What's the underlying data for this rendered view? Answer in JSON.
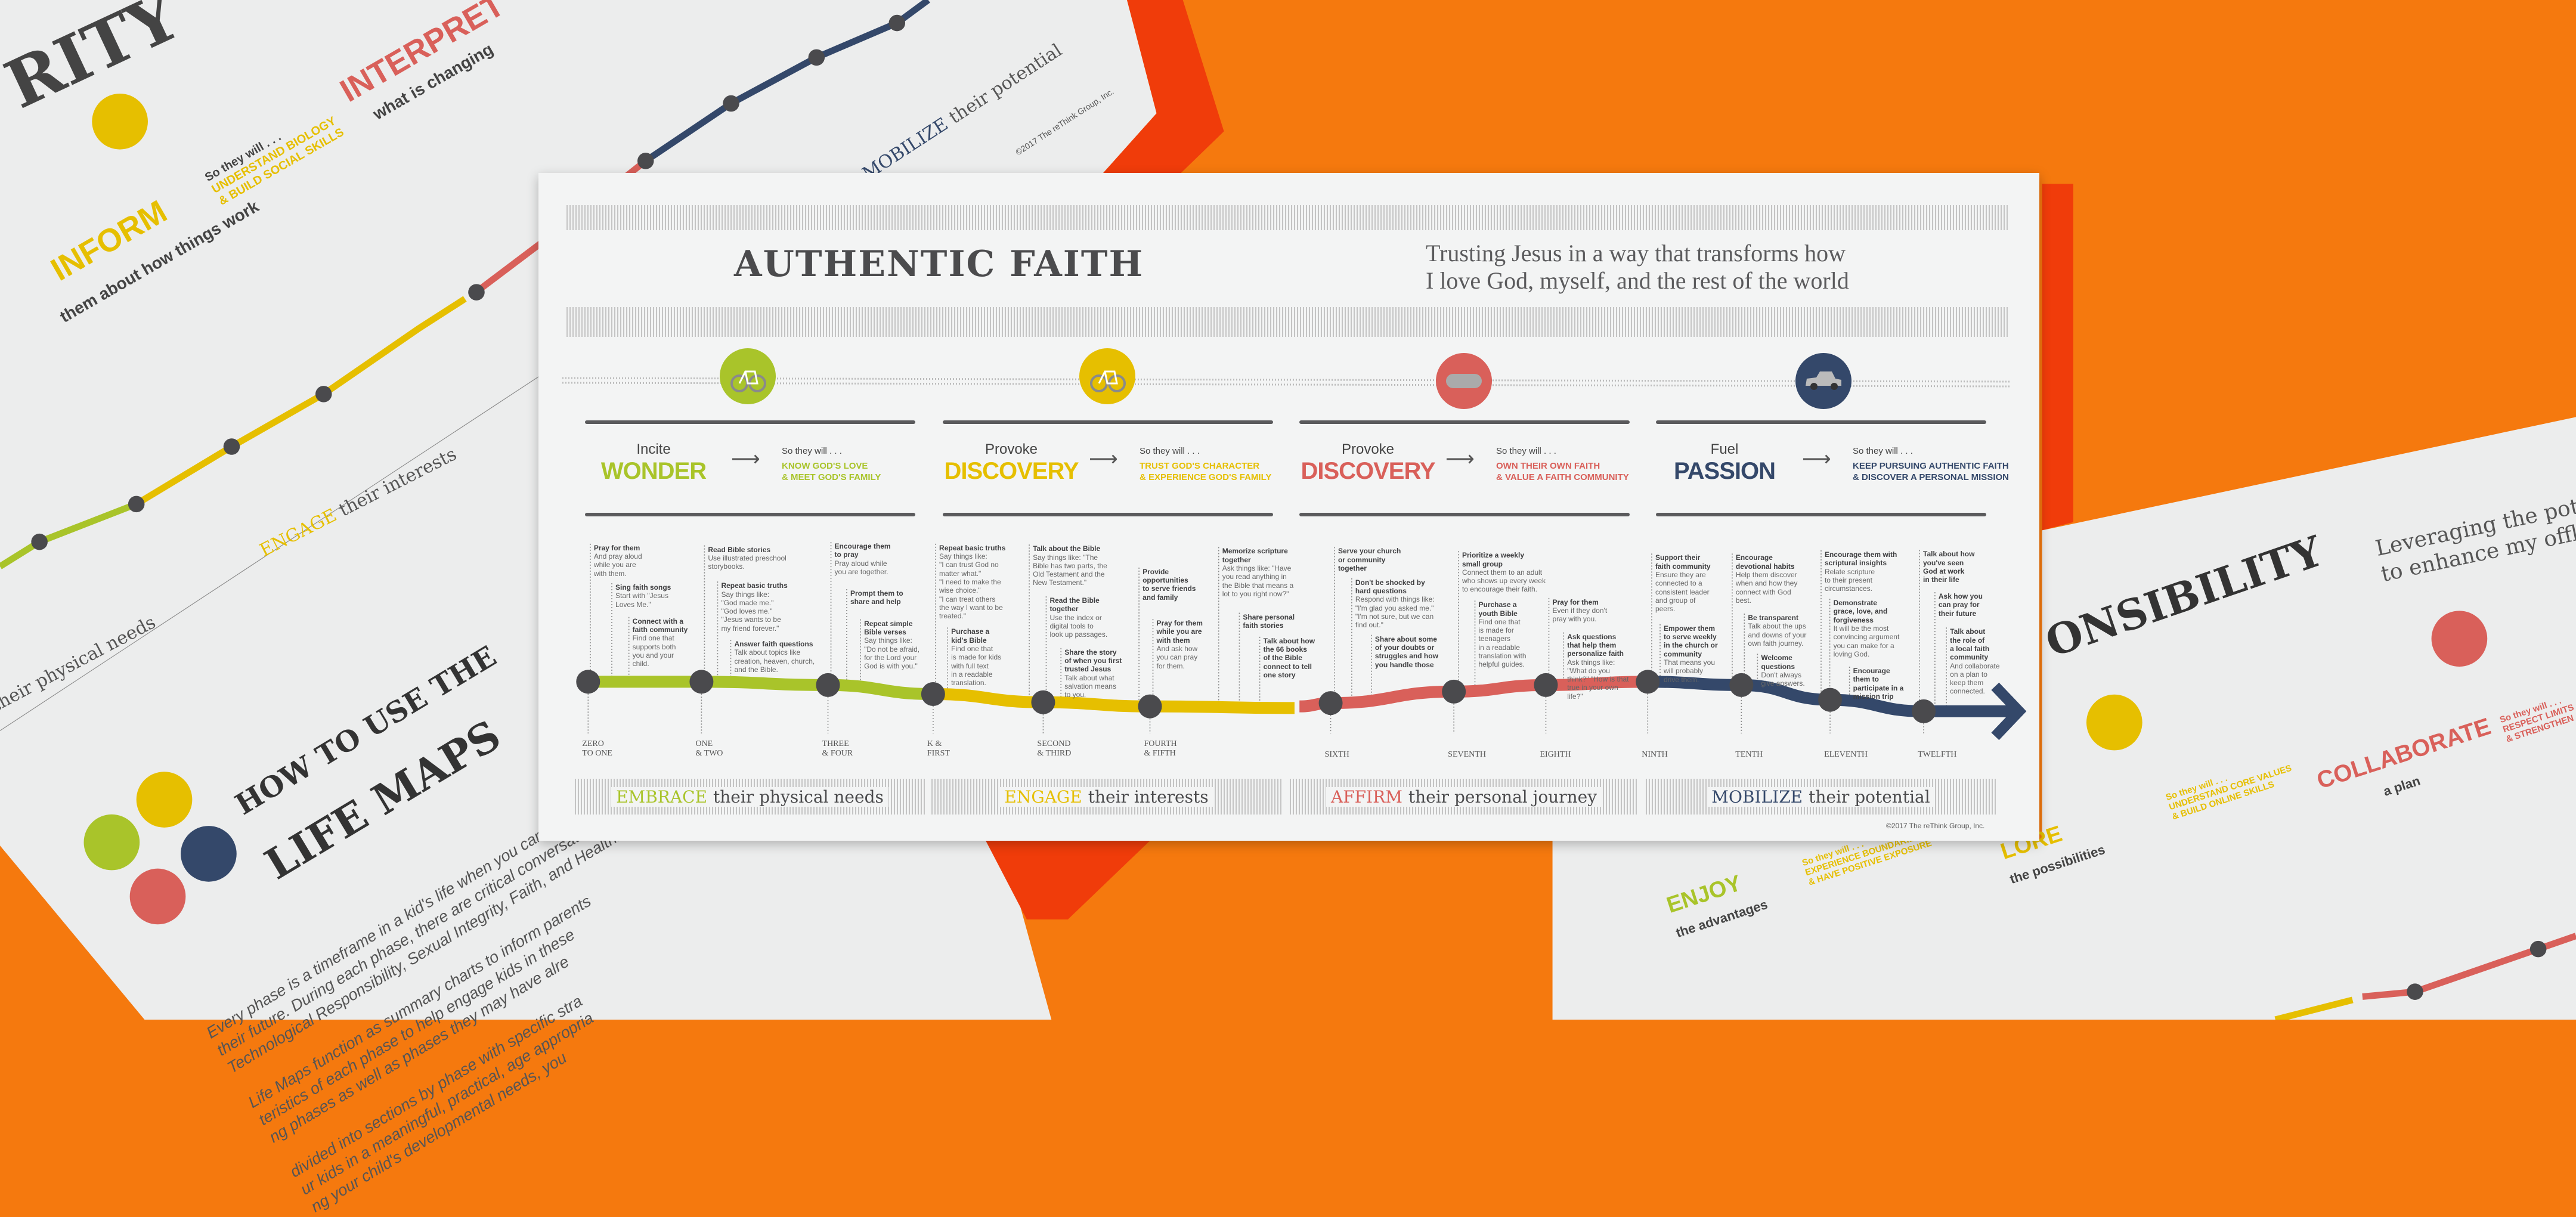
{
  "colors": {
    "background": "#f5790e",
    "accent_red_orange": "#f03c0a",
    "paper": "#f3f4f4",
    "green": "#a9c42a",
    "yellow": "#e6bf00",
    "red": "#d9605a",
    "navy": "#34486a",
    "node": "#4a4a4d"
  },
  "background_posters": {
    "top_left": {
      "title_fragment": "RITY",
      "inform": "INFORM",
      "inform_sub": "them about how things work",
      "interpret": "INTERPRET",
      "interpret_sub": "what is changing",
      "so_they_will": "So they will . . .",
      "goal": "UNDERSTAND BIOLOGY\n& BUILD SOCIAL SKILLS",
      "engage": "ENGAGE",
      "engage_rest": "their interests",
      "physical": "their physical needs",
      "mobilize": "MOBILIZE",
      "mobilize_rest": "their potential",
      "copyright": "©2017 The reThink Group, Inc."
    },
    "how_to": {
      "line1": "HOW TO USE THE",
      "line2": "LIFE MAPS",
      "paragraph": "Every phase is a timeframe in a kid's life when you can leverage disti\ntheir future. During each phase, there are critical conversations ea\nTechnological Responsibility, Sexual Integrity, Faith, and Health.\n\nLife Maps function as summary charts to inform parents\nteristics of each phase to help engage kids in these\nng phases as well as phases they may have alre\n\ndivided into sections by phase with specific stra\nur kids in a meaningful, practical, age appropria\nng your child's developmental needs, you"
    },
    "right": {
      "title_fragment": "ONSIBILITY",
      "subtitle": "Leveraging the poten\nto enhance my offlin",
      "enjoy": "ENJOY",
      "enjoy_sub": "the advantages",
      "enjoy_goal": "So they will . . .\nEXPERIENCE BOUNDARIES\n& HAVE POSITIVE EXPOSURE",
      "explore": "LORE",
      "explore_sub": "the possibilities",
      "explore_goal": "So they will . . .\nUNDERSTAND CORE VALUES\n& BUILD ONLINE SKILLS",
      "collaborate": "COLLABORATE",
      "collaborate_sub": "a plan",
      "collaborate_goal": "So they will . . .\nRESPECT LIMITS\n& STRENGTHEN"
    }
  },
  "poster": {
    "title": "AUTHENTIC FAITH",
    "subtitle": "Trusting Jesus in a way that transforms how\nI love God, myself, and the rest of the world",
    "phases": [
      {
        "verb": "Incite",
        "noun": "WONDER",
        "so_they_will": "So they will . . .",
        "goal": "KNOW GOD'S LOVE\n& MEET GOD'S FAMILY",
        "color": "#a9c42a",
        "icon": "bicycle-training-wheels-icon"
      },
      {
        "verb": "Provoke",
        "noun": "DISCOVERY",
        "so_they_will": "So they will . . .",
        "goal": "TRUST GOD'S CHARACTER\n& EXPERIENCE GOD'S FAMILY",
        "color": "#e6bf00",
        "icon": "bicycle-icon"
      },
      {
        "verb": "Provoke",
        "noun": "DISCOVERY",
        "so_they_will": "So they will . . .",
        "goal": "OWN THEIR OWN FAITH\n& VALUE A FAITH COMMUNITY",
        "color": "#d9605a",
        "icon": "skateboard-icon"
      },
      {
        "verb": "Fuel",
        "noun": "PASSION",
        "so_they_will": "So they will . . .",
        "goal": "KEEP PURSUING AUTHENTIC FAITH\n& DISCOVER A PERSONAL MISSION",
        "color": "#34486a",
        "icon": "car-icon"
      }
    ],
    "ages": [
      "ZERO\nTO ONE",
      "ONE\n& TWO",
      "THREE\n& FOUR",
      "K &\nFIRST",
      "SECOND\n& THIRD",
      "FOURTH\n& FIFTH",
      "SIXTH",
      "SEVENTH",
      "EIGHTH",
      "NINTH",
      "TENTH",
      "ELEVENTH",
      "TWELFTH"
    ],
    "items": [
      {
        "title": "Pray for them",
        "body": "And pray aloud\nwhile you are\nwith them."
      },
      {
        "title": "Sing faith songs",
        "body": "Start with \"Jesus\nLoves Me.\""
      },
      {
        "title": "Connect with a\nfaith community",
        "body": "Find one that\nsupports both\nyou and your\nchild."
      },
      {
        "title": "Read Bible stories",
        "body": "Use illustrated preschool\nstorybooks."
      },
      {
        "title": "Repeat basic truths",
        "body": "Say things like:\n\"God made me.\"\n\"God loves me.\"\n\"Jesus wants to be\nmy friend forever.\""
      },
      {
        "title": "Answer faith questions",
        "body": "Talk about topics like\ncreation, heaven, church,\nand the Bible."
      },
      {
        "title": "Encourage them\nto pray",
        "body": "Pray aloud while\nyou are together."
      },
      {
        "title": "Prompt them to\nshare and help",
        "body": ""
      },
      {
        "title": "Repeat simple\nBible verses",
        "body": "Say things like:\n\"Do not be afraid,\nfor the Lord your\nGod is with you.\""
      },
      {
        "title": "Repeat basic truths",
        "body": "Say things like:\n\"I can trust God no\nmatter what.\"\n\"I need to make the\nwise choice.\"\n\"I can treat others\nthe way I want to be\ntreated.\""
      },
      {
        "title": "Purchase a\nkid's Bible",
        "body": "Find one that\nis made for kids\nwith full text\nin a readable\ntranslation."
      },
      {
        "title": "Talk about the Bible",
        "body": "Say things like: \"The\nBible has two parts, the\nOld Testament and the\nNew Testament.\""
      },
      {
        "title": "Read the Bible\ntogether",
        "body": "Use the index or\ndigital tools to\nlook up passages."
      },
      {
        "title": "Share the story\nof when you first\ntrusted Jesus",
        "body": "Talk about what\nsalvation means\nto you."
      },
      {
        "title": "Provide\nopportunities\nto serve friends\nand family",
        "body": ""
      },
      {
        "title": "Pray for them\nwhile you are\nwith them",
        "body": "And ask how\nyou can pray\nfor them."
      },
      {
        "title": "Memorize scripture\ntogether",
        "body": "Ask things like: \"Have\nyou read anything in\nthe Bible that means a\nlot to you right now?\""
      },
      {
        "title": "Share personal\nfaith stories",
        "body": ""
      },
      {
        "title": "Talk about how\nthe 66 books\nof the Bible\nconnect to tell\none story",
        "body": ""
      },
      {
        "title": "Serve your church\nor community\ntogether",
        "body": ""
      },
      {
        "title": "Don't be shocked by\nhard questions",
        "body": "Respond with things like:\n\"I'm glad you asked me.\"\n\"I'm not sure, but we can\nfind out.\""
      },
      {
        "title": "Share about some\nof your doubts or\nstruggles and how\nyou handle those",
        "body": ""
      },
      {
        "title": "Prioritize a weekly\nsmall group",
        "body": "Connect them to an adult\nwho shows up every week\nto encourage their faith."
      },
      {
        "title": "Purchase a\nyouth Bible",
        "body": "Find one that\nis made for\nteenagers\nin a readable\ntranslation with\nhelpful guides."
      },
      {
        "title": "Pray for them",
        "body": "Even if they don't\npray with you."
      },
      {
        "title": "Ask questions\nthat help them\npersonalize faith",
        "body": "Ask things like:\n\"What do you\nthink?\" \"How is that\ntrue in your own\nlife?\""
      },
      {
        "title": "Support their\nfaith community",
        "body": "Ensure they are\nconnected to a\nconsistent leader\nand group of\npeers."
      },
      {
        "title": "Empower them\nto serve weekly\nin the church or\ncommunity",
        "body": "That means you\nwill probably\ndrive them."
      },
      {
        "title": "Encourage\ndevotional habits",
        "body": "Help them discover\nwhen and how they\nconnect with God\nbest."
      },
      {
        "title": "Be transparent",
        "body": "Talk about the ups\nand downs of your\nown faith journey."
      },
      {
        "title": "Welcome\nquestions",
        "body": "Don't always\ngive answers."
      },
      {
        "title": "Encourage them with\nscriptural insights",
        "body": "Relate scripture\nto their present\ncircumstances."
      },
      {
        "title": "Demonstrate\ngrace, love, and\nforgiveness",
        "body": "It will be the most\nconvincing argument\nyou can make for a\nloving God."
      },
      {
        "title": "Encourage\nthem to\nparticipate in a\nmission trip",
        "body": ""
      },
      {
        "title": "Talk about how\nyou've seen\nGod at work\nin their life",
        "body": ""
      },
      {
        "title": "Ask how you\ncan pray for\ntheir future",
        "body": ""
      },
      {
        "title": "Talk about\nthe role of\na local faith\ncommunity",
        "body": "And collaborate\non a plan to\nkeep them\nconnected."
      }
    ],
    "bands": [
      {
        "highlight": "EMBRACE",
        "rest": "their physical needs",
        "color": "#a9c42a"
      },
      {
        "highlight": "ENGAGE",
        "rest": "their interests",
        "color": "#e6bf00"
      },
      {
        "highlight": "AFFIRM",
        "rest": "their personal journey",
        "color": "#d9605a"
      },
      {
        "highlight": "MOBILIZE",
        "rest": "their potential",
        "color": "#34486a"
      }
    ],
    "copyright": "©2017 The reThink Group, Inc."
  }
}
